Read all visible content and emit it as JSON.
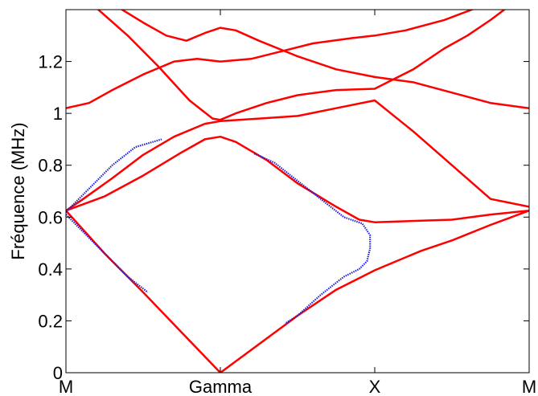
{
  "chart_data": {
    "type": "line",
    "ylabel": "Fréquence (MHz)",
    "xlabel": "",
    "x_ticks": [
      {
        "label": "M",
        "pos": 0
      },
      {
        "label": "Gamma",
        "pos": 1
      },
      {
        "label": "X",
        "pos": 2
      },
      {
        "label": "M",
        "pos": 3
      }
    ],
    "xlim": [
      0,
      3
    ],
    "ylim": [
      0,
      1.4
    ],
    "y_ticks": [
      0,
      0.2,
      0.4,
      0.6,
      0.8,
      1,
      1.2
    ],
    "y_tick_labels": [
      "0",
      "0.2",
      "0.4",
      "0.6",
      "0.8",
      "1",
      "1.2"
    ],
    "grid": false,
    "box": true,
    "colors": {
      "band": "#ff0000",
      "measured": "#1f1fd6",
      "axis": "#000000"
    },
    "series": [
      {
        "kind": "band",
        "color": "#ff0000",
        "points": [
          [
            0,
            0.625
          ],
          [
            0.25,
            0.46
          ],
          [
            0.5,
            0.31
          ],
          [
            0.75,
            0.155
          ],
          [
            1,
            0
          ],
          [
            1.25,
            0.11
          ],
          [
            1.5,
            0.22
          ],
          [
            1.75,
            0.32
          ],
          [
            2,
            0.395
          ],
          [
            2.1,
            0.42
          ],
          [
            2.3,
            0.47
          ],
          [
            2.5,
            0.51
          ],
          [
            2.75,
            0.57
          ],
          [
            3,
            0.625
          ]
        ]
      },
      {
        "kind": "band",
        "color": "#ff0000",
        "points": [
          [
            0,
            0.625
          ],
          [
            0.25,
            0.68
          ],
          [
            0.5,
            0.76
          ],
          [
            0.75,
            0.85
          ],
          [
            0.9,
            0.9
          ],
          [
            1,
            0.91
          ],
          [
            1.1,
            0.89
          ],
          [
            1.3,
            0.82
          ],
          [
            1.5,
            0.73
          ],
          [
            1.75,
            0.64
          ],
          [
            1.9,
            0.59
          ],
          [
            2,
            0.58
          ],
          [
            2.5,
            0.59
          ],
          [
            2.75,
            0.61
          ],
          [
            3,
            0.625
          ]
        ]
      },
      {
        "kind": "band",
        "color": "#ff0000",
        "points": [
          [
            0,
            0.625
          ],
          [
            0.1,
            0.665
          ],
          [
            0.3,
            0.75
          ],
          [
            0.5,
            0.84
          ],
          [
            0.7,
            0.91
          ],
          [
            0.9,
            0.96
          ],
          [
            1,
            0.97
          ],
          [
            1.25,
            0.98
          ],
          [
            1.5,
            0.99
          ],
          [
            1.75,
            1.02
          ],
          [
            2,
            1.05
          ],
          [
            2.25,
            0.93
          ],
          [
            2.5,
            0.8
          ],
          [
            2.75,
            0.67
          ],
          [
            3,
            0.64
          ]
        ]
      },
      {
        "kind": "band",
        "color": "#ff0000",
        "points": [
          [
            0.2,
            1.405
          ],
          [
            0.4,
            1.3
          ],
          [
            0.6,
            1.18
          ],
          [
            0.8,
            1.05
          ],
          [
            0.95,
            0.98
          ],
          [
            1,
            0.975
          ],
          [
            1.1,
            1.0
          ],
          [
            1.3,
            1.04
          ],
          [
            1.5,
            1.07
          ],
          [
            1.75,
            1.09
          ],
          [
            2,
            1.095
          ],
          [
            2.05,
            1.11
          ],
          [
            2.25,
            1.17
          ],
          [
            2.45,
            1.25
          ],
          [
            2.6,
            1.3
          ],
          [
            2.75,
            1.36
          ],
          [
            2.85,
            1.405
          ]
        ]
      },
      {
        "kind": "band",
        "color": "#ff0000",
        "points": [
          [
            0,
            1.02
          ],
          [
            0.15,
            1.04
          ],
          [
            0.3,
            1.09
          ],
          [
            0.5,
            1.15
          ],
          [
            0.7,
            1.2
          ],
          [
            0.85,
            1.21
          ],
          [
            1,
            1.2
          ],
          [
            1.2,
            1.21
          ],
          [
            1.4,
            1.24
          ],
          [
            1.6,
            1.27
          ],
          [
            1.85,
            1.29
          ],
          [
            2,
            1.3
          ],
          [
            2.2,
            1.32
          ],
          [
            2.45,
            1.36
          ],
          [
            2.65,
            1.405
          ]
        ]
      },
      {
        "kind": "band",
        "color": "#ff0000",
        "points": [
          [
            0.35,
            1.405
          ],
          [
            0.5,
            1.35
          ],
          [
            0.65,
            1.3
          ],
          [
            0.78,
            1.28
          ],
          [
            0.9,
            1.31
          ],
          [
            1,
            1.33
          ],
          [
            1.1,
            1.32
          ],
          [
            1.25,
            1.28
          ],
          [
            1.5,
            1.22
          ],
          [
            1.75,
            1.17
          ],
          [
            2,
            1.14
          ],
          [
            2.25,
            1.12
          ],
          [
            2.5,
            1.08
          ],
          [
            2.75,
            1.04
          ],
          [
            3,
            1.02
          ]
        ]
      },
      {
        "kind": "measured",
        "color": "#1f1fd6",
        "points": [
          [
            0,
            0.61
          ],
          [
            0.1,
            0.55
          ],
          [
            0.2,
            0.49
          ],
          [
            0.3,
            0.43
          ],
          [
            0.4,
            0.37
          ],
          [
            0.53,
            0.31
          ]
        ]
      },
      {
        "kind": "measured",
        "color": "#1f1fd6",
        "points": [
          [
            0,
            0.62
          ],
          [
            0.1,
            0.68
          ],
          [
            0.2,
            0.74
          ],
          [
            0.3,
            0.8
          ],
          [
            0.45,
            0.87
          ],
          [
            0.62,
            0.9
          ]
        ]
      },
      {
        "kind": "measured",
        "color": "#1f1fd6",
        "points": [
          [
            1.22,
            0.845
          ],
          [
            1.35,
            0.81
          ],
          [
            1.5,
            0.74
          ],
          [
            1.65,
            0.67
          ],
          [
            1.8,
            0.6
          ],
          [
            1.92,
            0.575
          ],
          [
            1.97,
            0.53
          ],
          [
            1.97,
            0.48
          ],
          [
            1.95,
            0.43
          ],
          [
            1.9,
            0.4
          ],
          [
            1.8,
            0.37
          ],
          [
            1.65,
            0.3
          ],
          [
            1.5,
            0.22
          ],
          [
            1.42,
            0.19
          ]
        ]
      }
    ]
  }
}
